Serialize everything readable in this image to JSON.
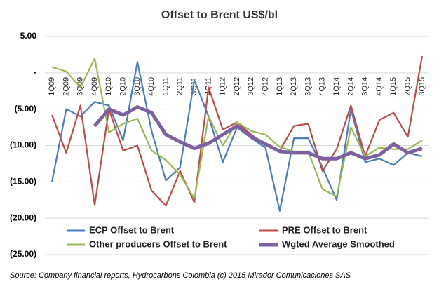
{
  "chart_data": {
    "type": "line",
    "title": "Offset to Brent US$/bl",
    "categories": [
      "1Q09",
      "2Q09",
      "3Q09",
      "4Q09",
      "1Q10",
      "2Q10",
      "3Q10",
      "4Q10",
      "1Q11",
      "2Q11",
      "3Q11",
      "4Q11",
      "1Q12",
      "2Q12",
      "3Q12",
      "4Q12",
      "1Q13",
      "2Q13",
      "3Q13",
      "4Q13",
      "1Q14",
      "2Q14",
      "3Q14",
      "4Q14",
      "1Q15",
      "2Q15",
      "3Q15"
    ],
    "series": [
      {
        "name": "ECP Offset to Brent",
        "color": "#4a7ebb",
        "values": [
          -15,
          -5,
          -6,
          -4,
          -4.5,
          -9.3,
          1.5,
          -8,
          -14.8,
          -13,
          -1,
          -6,
          -12.3,
          -7.5,
          -9,
          -10.3,
          -19,
          -9,
          -9,
          -13,
          -17.5,
          -5,
          -12.3,
          -11.8,
          -12.7,
          -11,
          -11.5
        ]
      },
      {
        "name": "PRE Offset to Brent",
        "color": "#be4b48",
        "values": [
          -5.8,
          -11,
          -4.5,
          -18.2,
          -5,
          -10.7,
          -10,
          -16.2,
          -18.3,
          -13.5,
          -17.8,
          -2,
          -7.8,
          -6.8,
          -8.5,
          -10,
          -10.7,
          -7.3,
          -7,
          -13.5,
          -10.5,
          -4.5,
          -11.5,
          -6.5,
          -5.5,
          -8.8,
          2.3
        ]
      },
      {
        "name": "Other producers Offset to Brent",
        "color": "#98b954",
        "values": [
          0.8,
          0.2,
          -2,
          2,
          -8.2,
          -7,
          -6.3,
          -10.7,
          -12,
          -14,
          -17.3,
          -6,
          -10,
          -6.8,
          -8,
          -8.5,
          -10.2,
          -10.8,
          -10.8,
          -16,
          -17,
          -7.5,
          -11.5,
          -10.3,
          -10.5,
          -10.5,
          -9.3
        ]
      },
      {
        "name": "Wgted Average Smoothed",
        "color": "#7d60a0",
        "values": [
          null,
          null,
          null,
          -7.3,
          -5,
          -5.8,
          -4.7,
          -5.5,
          -8.5,
          -9.5,
          -10.4,
          -9.7,
          -8.5,
          -7.3,
          -8.8,
          -9.8,
          -10.8,
          -11,
          -11,
          -11.8,
          -11.8,
          -11,
          -11.8,
          -11.3,
          -9.8,
          -11,
          -10.4
        ]
      }
    ],
    "ylim": [
      -25,
      5
    ],
    "yticks": [
      {
        "value": 5,
        "label": "5.00"
      },
      {
        "value": 0,
        "label": "-"
      },
      {
        "value": -5,
        "label": "(5.00)"
      },
      {
        "value": -10,
        "label": "(10.00)"
      },
      {
        "value": -15,
        "label": "(15.00)"
      },
      {
        "value": -20,
        "label": "(20.00)"
      },
      {
        "value": -25,
        "label": "(25.00)"
      }
    ],
    "grid": true,
    "source": "Source:  Company financial reports,  Hydrocarbons Colombia (c) 2015 Mirador Comunicaciones  SAS"
  }
}
